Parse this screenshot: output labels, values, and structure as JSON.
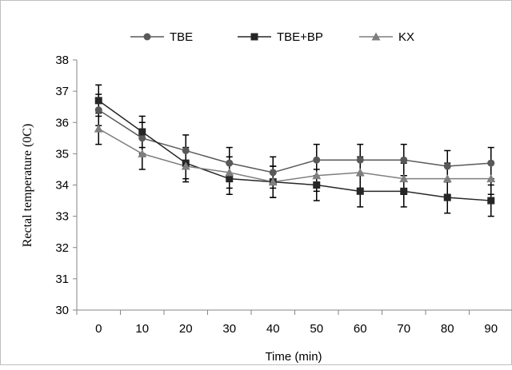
{
  "chart_data": {
    "type": "line",
    "title": "",
    "xlabel": "Time (min)",
    "ylabel": "Rectal temperature (0C)",
    "x": [
      0,
      10,
      20,
      30,
      40,
      50,
      60,
      70,
      80,
      90
    ],
    "ylim": [
      30,
      38
    ],
    "yticks": [
      30,
      31,
      32,
      33,
      34,
      35,
      36,
      37,
      38
    ],
    "grid": false,
    "legend_position": "top",
    "error_bars": true,
    "series": [
      {
        "name": "TBE",
        "marker": "circle",
        "color": "#595959",
        "values": [
          36.4,
          35.5,
          35.1,
          34.7,
          34.4,
          34.8,
          34.8,
          34.8,
          34.6,
          34.7
        ],
        "errors": [
          0.5,
          0.5,
          0.5,
          0.5,
          0.5,
          0.5,
          0.5,
          0.5,
          0.5,
          0.5
        ]
      },
      {
        "name": "TBE+BP",
        "marker": "square",
        "color": "#262626",
        "values": [
          36.7,
          35.7,
          34.7,
          34.2,
          34.1,
          34.0,
          33.8,
          33.8,
          33.6,
          33.5
        ],
        "errors": [
          0.5,
          0.5,
          0.5,
          0.5,
          0.5,
          0.5,
          0.5,
          0.5,
          0.5,
          0.5
        ]
      },
      {
        "name": "KX",
        "marker": "triangle",
        "color": "#7f7f7f",
        "values": [
          35.8,
          35.0,
          34.6,
          34.4,
          34.1,
          34.3,
          34.4,
          34.2,
          34.2,
          34.2
        ],
        "errors": [
          0.5,
          0.5,
          0.5,
          0.5,
          0.5,
          0.5,
          0.5,
          0.5,
          0.5,
          0.5
        ]
      }
    ]
  }
}
